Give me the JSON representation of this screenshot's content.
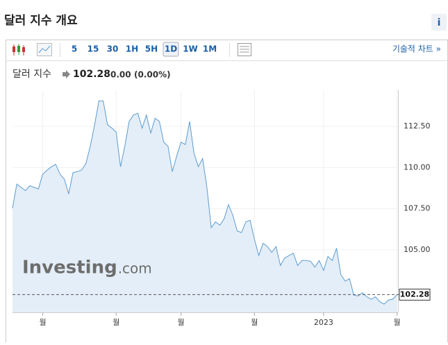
{
  "header": {
    "title": "달러 지수 개요",
    "info_button": "i"
  },
  "toolbar": {
    "intervals": [
      "5",
      "15",
      "30",
      "1H",
      "5H",
      "1D",
      "1W",
      "1M"
    ],
    "selected_interval": "1D",
    "technical_chart": "기술적 차트 »"
  },
  "quote": {
    "name": "달러 지수",
    "price": "102.28",
    "change": "0.00",
    "change_percent": "(0.00%)"
  },
  "chart_data": {
    "type": "area",
    "watermark": "Investing",
    "watermark_suffix": ".com",
    "categories": [
      null,
      null,
      null,
      null,
      null,
      null,
      null,
      "월",
      null,
      null,
      null,
      null,
      null,
      null,
      null,
      null,
      null,
      null,
      null,
      null,
      null,
      null,
      null,
      null,
      "월",
      null,
      null,
      null,
      null,
      null,
      null,
      null,
      null,
      null,
      null,
      null,
      null,
      null,
      null,
      "월",
      null,
      null,
      null,
      null,
      null,
      null,
      null,
      null,
      null,
      null,
      null,
      null,
      null,
      null,
      null,
      null,
      "월",
      null,
      null,
      null,
      null,
      null,
      null,
      null,
      null,
      null,
      null,
      null,
      null,
      null,
      null,
      null,
      "2023",
      null,
      null,
      null,
      null,
      null,
      null,
      null,
      null,
      null,
      null,
      null,
      null,
      null,
      null,
      null,
      null,
      "월"
    ],
    "values": [
      107.53,
      109.0,
      108.8,
      108.6,
      108.9,
      108.8,
      108.7,
      109.6,
      109.85,
      110.05,
      110.2,
      109.6,
      109.3,
      108.4,
      109.7,
      109.75,
      109.85,
      110.25,
      111.3,
      112.6,
      114.05,
      114.05,
      112.6,
      112.4,
      112.15,
      110.05,
      111.3,
      112.8,
      113.2,
      113.3,
      112.4,
      113.2,
      112.1,
      113.0,
      112.8,
      111.55,
      111.3,
      109.75,
      110.7,
      111.55,
      111.4,
      112.8,
      110.9,
      110.05,
      110.55,
      108.8,
      106.35,
      106.7,
      106.5,
      106.9,
      107.75,
      107.1,
      106.15,
      106.05,
      106.7,
      106.8,
      105.65,
      104.65,
      105.4,
      105.2,
      104.85,
      105.2,
      104.05,
      104.5,
      104.65,
      104.8,
      104.05,
      104.35,
      104.35,
      104.3,
      103.95,
      104.35,
      103.75,
      104.6,
      104.35,
      105.1,
      103.5,
      103.1,
      103.25,
      102.25,
      102.2,
      102.4,
      102.15,
      102.0,
      102.15,
      101.85,
      101.7,
      101.95,
      102.0,
      102.28
    ],
    "color": "#5b9bd0",
    "fill_color": "#e4eef8",
    "ylim": [
      101.2,
      114.7
    ],
    "yticks": [
      {
        "value": 105,
        "label": "105.00"
      },
      {
        "value": 107.5,
        "label": "107.50"
      },
      {
        "value": 110,
        "label": "110.00"
      },
      {
        "value": 112.5,
        "label": "112.50"
      }
    ],
    "grid": true
  }
}
